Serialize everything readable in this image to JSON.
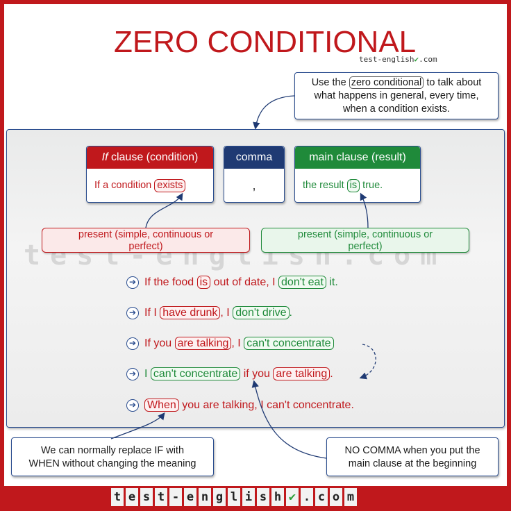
{
  "title": "ZERO CONDITIONAL",
  "brand_small": "test-english",
  "brand_small_suffix": ".com",
  "notes": {
    "top_pre": "Use the",
    "top_tag": "zero conditional",
    "top_post": "to talk about",
    "top_line2": "what happens in general, every time,",
    "top_line3": "when a condition exists.",
    "bottom_left_line1": "We can normally replace IF with",
    "bottom_left_line2": "WHEN without changing the meaning",
    "bottom_right_line1": "NO COMMA when you put the",
    "bottom_right_line2": "main clause at the beginning"
  },
  "boxes": {
    "if_header_em": "If",
    "if_header_rest": " clause (condition)",
    "if_body_pre": "If a condition ",
    "if_body_tag": "exists",
    "comma_header": "comma",
    "comma_body": ",",
    "main_header": "main clause (result)",
    "main_body_pre": "the result ",
    "main_body_tag": "is",
    "main_body_post": " true."
  },
  "tense": {
    "left_line1": "present (simple, continuous or",
    "left_line2": "perfect)",
    "right_line1": "present (simple, continuous or",
    "right_line2": "perfect)"
  },
  "watermark": "test-english.com",
  "examples": [
    {
      "a": "If the food ",
      "b": "is",
      "c": " out of date, I ",
      "d": "don't eat",
      "e": " it."
    },
    {
      "a": "If I ",
      "b": "have drunk",
      "c": ", I ",
      "d": "don't drive",
      "e": "."
    },
    {
      "a": "If you ",
      "b": "are talking",
      "c": ", I ",
      "d": "can't concentrate",
      "e": ""
    },
    {
      "a": "I ",
      "b": "can't concentrate",
      "c": " if you ",
      "d": "are talking",
      "e": "."
    },
    {
      "a": "",
      "b": "When",
      "c": " you are talking, I can't concentrate.",
      "d": "",
      "e": ""
    }
  ],
  "footer_brand": [
    "t",
    "e",
    "s",
    "t",
    "-",
    "e",
    "n",
    "g",
    "l",
    "i",
    "s",
    "h",
    "✔",
    ".",
    "c",
    "o",
    "m"
  ],
  "colors": {
    "red": "#c0181c",
    "green": "#1f8a3a",
    "navy": "#1f3a73"
  },
  "icons": {
    "example_marker": "arrow-right-circle-icon",
    "check": "check-icon"
  }
}
